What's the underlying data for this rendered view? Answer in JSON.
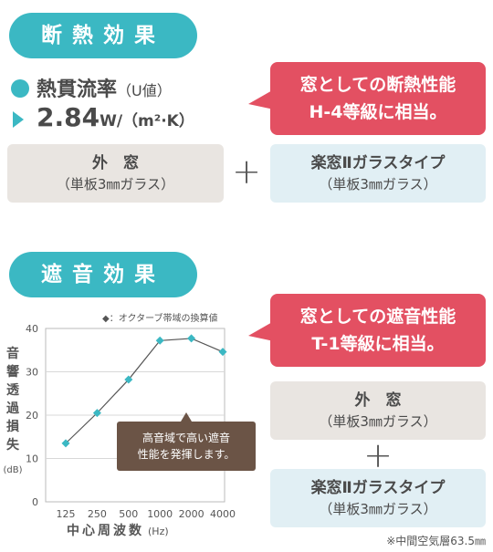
{
  "insulation": {
    "title": "断熱効果",
    "metric_label": "熱貫流率",
    "metric_unit_note": "（U値）",
    "value": "2.84",
    "value_unit": "W/（m²·K）",
    "bubble_line1": "窓としての断熱性能",
    "bubble_line2": "H-4等級に相当。",
    "outer": {
      "title": "外　窓",
      "sub": "（単板3㎜ガラス）"
    },
    "plus": "+",
    "inner": {
      "title": "楽窓Ⅱガラスタイプ",
      "sub": "（単板3㎜ガラス）"
    }
  },
  "sound": {
    "title": "遮音効果",
    "bubble_line1": "窓としての遮音性能",
    "bubble_line2": "T-1等級に相当。",
    "outer": {
      "title": "外　窓",
      "sub": "（単板3㎜ガラス）"
    },
    "plus": "+",
    "inner": {
      "title": "楽窓Ⅱガラスタイプ",
      "sub": "（単板3㎜ガラス）"
    },
    "footnote": "※中間空気層63.5㎜",
    "tooltip_line1": "高音域で高い遮音",
    "tooltip_line2": "性能を発揮します。"
  },
  "chart_data": {
    "type": "line",
    "legend": "◆：オクターブ帯域の換算値",
    "legend_position": "top",
    "categories": [
      "125",
      "250",
      "500",
      "1000",
      "2000",
      "4000"
    ],
    "values": [
      13.5,
      20.5,
      28.2,
      37.2,
      37.7,
      34.6
    ],
    "ylim": [
      0,
      40
    ],
    "yticks": [
      "0",
      "10",
      "20",
      "30",
      "40"
    ],
    "ylabel_chars": [
      "音",
      "響",
      "透",
      "過",
      "損",
      "失"
    ],
    "ylabel_unit": "(dB)",
    "xlabel": "中心周波数",
    "xlabel_unit": "(Hz)",
    "grid": "horizontal",
    "marker_color": "#3bb8c3",
    "line_color": "#555555"
  },
  "colors": {
    "accent": "#3bb8c3",
    "bubble": "#e35062",
    "gray_box": "#e9e5e1",
    "blue_box": "#e1eff4",
    "tooltip": "#6b5446"
  }
}
